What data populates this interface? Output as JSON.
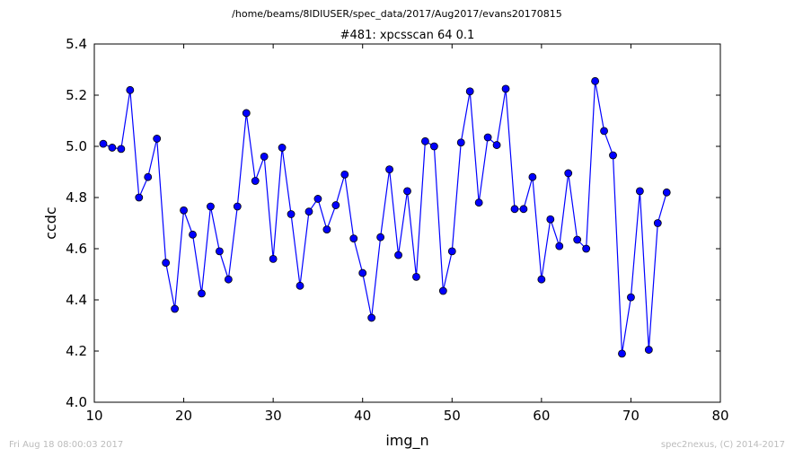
{
  "figure": {
    "suptitle": "/home/beams/8IDIUSER/spec_data/2017/Aug2017/evans20170815",
    "footer_left": "Fri Aug 18 08:00:03 2017",
    "footer_right": "spec2nexus, (C) 2014-2017"
  },
  "chart_data": {
    "type": "line",
    "title": "#481: xpcsscan 64 0.1",
    "xlabel": "img_n",
    "ylabel": "ccdc",
    "xlim": [
      10,
      80
    ],
    "ylim": [
      4.0,
      5.4
    ],
    "xticks": [
      10,
      20,
      30,
      40,
      50,
      60,
      70,
      80
    ],
    "yticks": [
      4.0,
      4.2,
      4.4,
      4.6,
      4.8,
      5.0,
      5.2,
      5.4
    ],
    "xtick_labels": [
      "10",
      "20",
      "30",
      "40",
      "50",
      "60",
      "70",
      "80"
    ],
    "ytick_labels": [
      "4.0",
      "4.2",
      "4.4",
      "4.6",
      "4.8",
      "5.0",
      "5.2",
      "5.4"
    ],
    "grid": false,
    "series_color": "#0000ff",
    "series": [
      {
        "x": [
          11,
          12,
          13,
          14,
          15,
          16,
          17,
          18,
          19,
          20,
          21,
          22,
          23,
          24,
          25,
          26,
          27,
          28,
          29,
          30,
          31,
          32,
          33,
          34,
          35,
          36,
          37,
          38,
          39,
          40,
          41,
          42,
          43,
          44,
          45,
          46,
          47,
          48,
          49,
          50,
          51,
          52,
          53,
          54,
          55,
          56,
          57,
          58,
          59,
          60,
          61,
          62,
          63,
          64,
          65,
          66,
          67,
          68,
          69,
          70,
          71,
          72,
          73,
          74
        ],
        "values": [
          5.01,
          4.995,
          4.99,
          5.22,
          4.8,
          4.88,
          5.03,
          4.545,
          4.365,
          4.75,
          4.655,
          4.425,
          4.765,
          4.59,
          4.48,
          4.765,
          5.13,
          4.865,
          4.96,
          4.56,
          4.995,
          4.735,
          4.455,
          4.745,
          4.795,
          4.675,
          4.77,
          4.89,
          4.64,
          4.505,
          4.33,
          4.645,
          4.91,
          4.575,
          4.825,
          4.49,
          5.02,
          5.0,
          4.435,
          4.59,
          5.015,
          5.215,
          4.78,
          5.035,
          5.005,
          5.225,
          4.755,
          4.755,
          4.88,
          4.48,
          4.715,
          4.61,
          4.895,
          4.635,
          4.6,
          5.255,
          5.06,
          4.965,
          4.19,
          4.41,
          4.825,
          4.205,
          4.7,
          4.82
        ]
      }
    ]
  }
}
